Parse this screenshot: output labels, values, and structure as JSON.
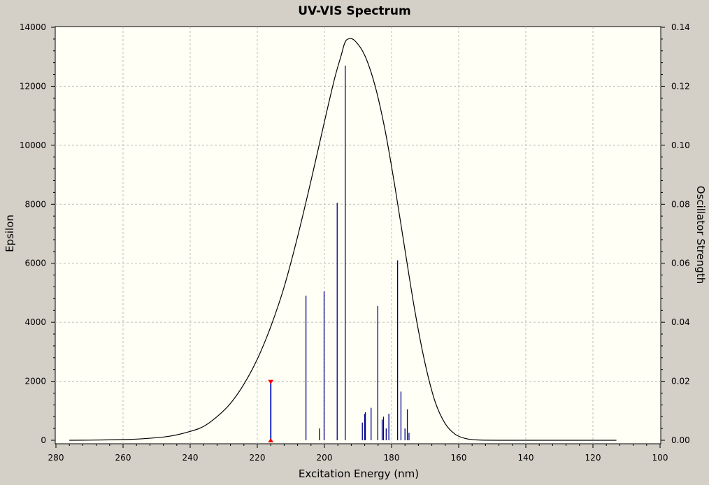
{
  "chart_data": {
    "type": "line",
    "title": "UV-VIS Spectrum",
    "xlabel": "Excitation Energy (nm)",
    "ylabel_left": "Epsilon",
    "ylabel_right": "Oscillator Strength",
    "xlim": [
      280,
      100
    ],
    "ylim_left": [
      0,
      14000
    ],
    "ylim_right": [
      0.0,
      0.14
    ],
    "x_ticks": [
      "280",
      "260",
      "240",
      "220",
      "200",
      "180",
      "160",
      "140",
      "120",
      "100"
    ],
    "y_left_ticks": [
      "0",
      "2000",
      "4000",
      "6000",
      "8000",
      "10000",
      "12000",
      "14000"
    ],
    "y_right_ticks": [
      "0.00",
      "0.02",
      "0.04",
      "0.06",
      "0.08",
      "0.10",
      "0.12",
      "0.14"
    ],
    "grid": true,
    "colors": {
      "plot_background": "#fffff5",
      "window_background": "#d4d0c8",
      "curve": "#000000",
      "sticks": "#000090",
      "selected_stick": "#1a2bd0",
      "marker": "#ff0000",
      "grid": "#bdbdbd"
    },
    "series": [
      {
        "kind": "curve",
        "axis": "left",
        "x": [
          276,
          270,
          264,
          258,
          252,
          246,
          240,
          236,
          232,
          228,
          224,
          220,
          216,
          212,
          208,
          204,
          200,
          197,
          195,
          194,
          193,
          191,
          188,
          185,
          182,
          179,
          176,
          173,
          170,
          167,
          164,
          161,
          158,
          155,
          152,
          146,
          140,
          130,
          120,
          113
        ],
        "y": [
          0,
          5,
          15,
          30,
          70,
          140,
          300,
          470,
          800,
          1250,
          1900,
          2750,
          3850,
          5200,
          6900,
          8800,
          10800,
          12250,
          13050,
          13450,
          13600,
          13550,
          13050,
          12050,
          10550,
          8600,
          6450,
          4350,
          2600,
          1300,
          560,
          200,
          60,
          15,
          3,
          0,
          0,
          0,
          0,
          0
        ]
      },
      {
        "kind": "sticks",
        "axis": "right",
        "x": [
          216,
          205.5,
          201.5,
          200.1,
          196.2,
          193.8,
          188.7,
          188.0,
          187.8,
          186.1,
          184.1,
          182.8,
          182.4,
          181.6,
          180.8,
          178.2,
          177.2,
          176.0,
          175.3,
          174.8
        ],
        "y": [
          0.02,
          0.049,
          0.004,
          0.0505,
          0.0805,
          0.127,
          0.006,
          0.009,
          0.0095,
          0.011,
          0.0455,
          0.007,
          0.008,
          0.004,
          0.009,
          0.061,
          0.0165,
          0.004,
          0.0105,
          0.0025
        ]
      }
    ]
  }
}
